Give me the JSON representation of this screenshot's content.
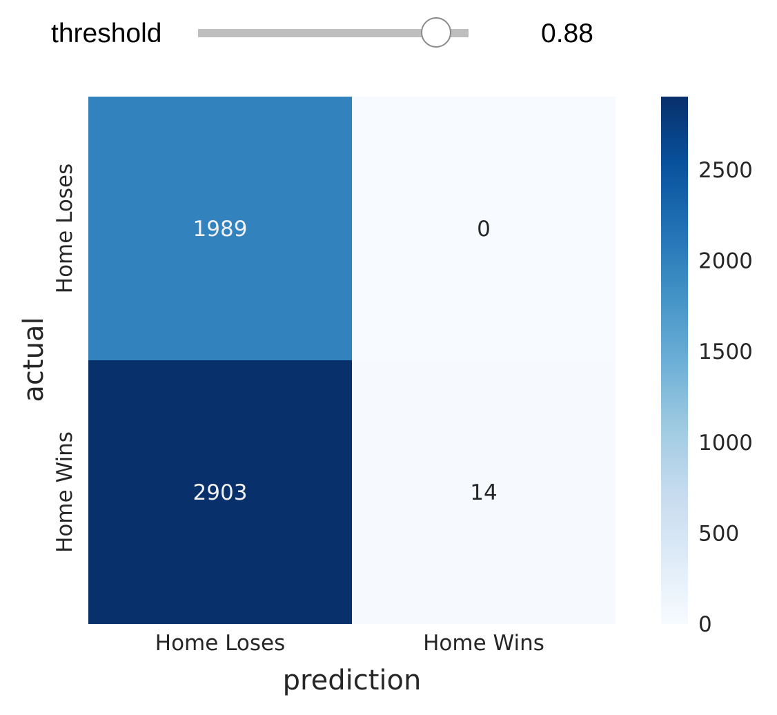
{
  "slider": {
    "label": "threshold",
    "value": 0.88,
    "value_text": "0.88",
    "min": 0,
    "max": 1
  },
  "colors": {
    "colormap": "Blues",
    "low": "#f7fbff",
    "high": "#08306b",
    "annotation_dark_cell": "#f0f0f0",
    "annotation_light_cell": "#262626"
  },
  "chart_data": {
    "type": "heatmap",
    "title": "",
    "xlabel": "prediction",
    "ylabel": "actual",
    "x_categories": [
      "Home Loses",
      "Home Wins"
    ],
    "y_categories": [
      "Home Loses",
      "Home Wins"
    ],
    "values": [
      [
        1989,
        0
      ],
      [
        2903,
        14
      ]
    ],
    "annotations": [
      [
        "1989",
        "0"
      ],
      [
        "2903",
        "14"
      ]
    ],
    "colorbar": {
      "range": [
        0,
        2903
      ],
      "ticks": [
        0,
        500,
        1000,
        1500,
        2000,
        2500
      ],
      "tick_labels": [
        "0",
        "500",
        "1000",
        "1500",
        "2000",
        "2500"
      ]
    },
    "grid": false,
    "legend": "colorbar-right"
  }
}
